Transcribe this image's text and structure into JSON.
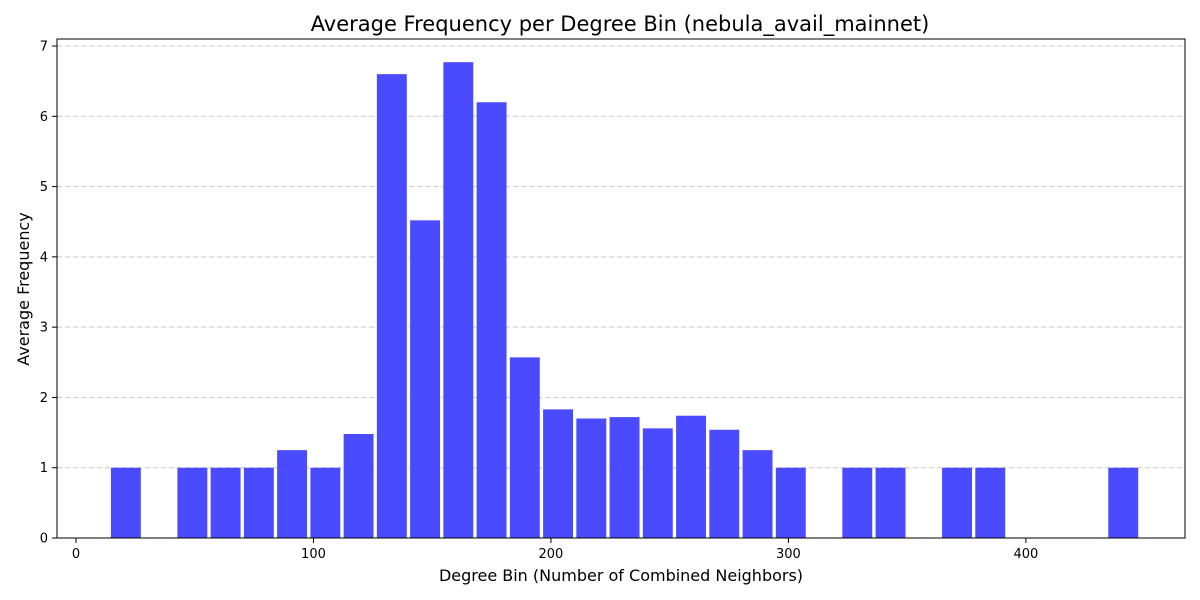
{
  "chart_data": {
    "type": "bar",
    "title": "Average Frequency per Degree Bin (nebula_avail_mainnet)",
    "xlabel": "Degree Bin (Number of Combined Neighbors)",
    "ylabel": "Average Frequency",
    "xlim": [
      -8,
      467
    ],
    "ylim": [
      0,
      7.1
    ],
    "bin_width": 14,
    "x": [
      21,
      49,
      63,
      77,
      91,
      105,
      119,
      133,
      147,
      161,
      175,
      189,
      203,
      217,
      231,
      245,
      259,
      273,
      287,
      301,
      329,
      343,
      371,
      385,
      441
    ],
    "values": [
      1.0,
      1.0,
      1.0,
      1.0,
      1.25,
      1.0,
      1.48,
      6.6,
      4.52,
      6.77,
      6.2,
      2.57,
      1.83,
      1.7,
      1.72,
      1.56,
      1.74,
      1.54,
      1.25,
      1.0,
      1.0,
      1.0,
      1.0,
      1.0,
      1.0
    ],
    "x_ticks": [
      0,
      100,
      200,
      300,
      400
    ],
    "y_ticks": [
      0,
      1,
      2,
      3,
      4,
      5,
      6,
      7
    ],
    "grid": "y-dashed",
    "bar_color": "#4a4aff"
  }
}
